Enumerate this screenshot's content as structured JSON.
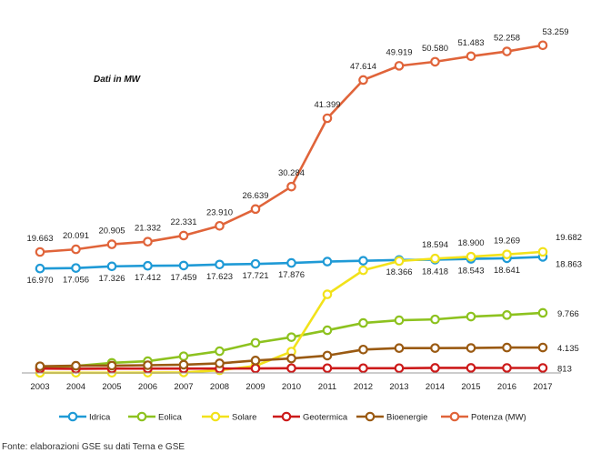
{
  "note": "Dati in MW",
  "source": "Fonte: elaborazioni GSE su dati Terna e GSE",
  "chart_data": {
    "type": "line",
    "x": [
      "2003",
      "2004",
      "2005",
      "2006",
      "2007",
      "2008",
      "2009",
      "2010",
      "2011",
      "2012",
      "2013",
      "2014",
      "2015",
      "2016",
      "2017"
    ],
    "ylim": [
      0,
      55000
    ],
    "grid": false,
    "legend_position": "bottom",
    "series": [
      {
        "name": "Idrica",
        "color": "#1f9ad6",
        "values": [
          16970,
          17056,
          17326,
          17412,
          17459,
          17623,
          17721,
          17876,
          18100,
          18232,
          18366,
          18418,
          18543,
          18641,
          18863
        ],
        "labels": [
          "16.970",
          "17.056",
          "17.326",
          "17.412",
          "17.459",
          "17.623",
          "17.721",
          "17.876",
          "",
          "",
          "18.366",
          "18.418",
          "18.543",
          "18.641",
          "18.863"
        ]
      },
      {
        "name": "Eolica",
        "color": "#8dc21f",
        "values": [
          874,
          1131,
          1639,
          1908,
          2714,
          3538,
          4898,
          5814,
          6936,
          8119,
          8561,
          8703,
          9162,
          9410,
          9766
        ],
        "labels": [
          "",
          "",
          "",
          "",
          "",
          "",
          "",
          "",
          "",
          "",
          "",
          "",
          "",
          "",
          "9.766"
        ]
      },
      {
        "name": "Solare",
        "color": "#f2e21a",
        "values": [
          26,
          31,
          34,
          50,
          87,
          432,
          1144,
          3470,
          12773,
          16690,
          18185,
          18594,
          18900,
          19269,
          19682
        ],
        "labels": [
          "",
          "",
          "",
          "",
          "",
          "",
          "",
          "",
          "",
          "",
          "",
          "18.594",
          "18.900",
          "19.269",
          "19.682"
        ]
      },
      {
        "name": "Geotermica",
        "color": "#cc1a1a",
        "values": [
          707,
          681,
          711,
          711,
          711,
          711,
          737,
          772,
          772,
          772,
          773,
          821,
          821,
          815,
          813
        ],
        "labels": [
          "",
          "",
          "",
          "",
          "",
          "",
          "",
          "",
          "",
          "",
          "",
          "",
          "",
          "",
          "813"
        ]
      },
      {
        "name": "Bioenergie",
        "color": "#9a5a12",
        "values": [
          1086,
          1173,
          1193,
          1256,
          1336,
          1555,
          2019,
          2352,
          2825,
          3802,
          4033,
          4044,
          4057,
          4124,
          4135
        ],
        "labels": [
          "",
          "",
          "",
          "",
          "",
          "",
          "",
          "",
          "",
          "",
          "",
          "",
          "",
          "",
          "4.135"
        ]
      },
      {
        "name": "Potenza (MW)",
        "color": "#e0643a",
        "values": [
          19663,
          20091,
          20905,
          21332,
          22331,
          23910,
          26639,
          30284,
          41399,
          47614,
          49919,
          50580,
          51483,
          52258,
          53259
        ],
        "labels": [
          "19.663",
          "20.091",
          "20.905",
          "21.332",
          "22.331",
          "23.910",
          "26.639",
          "30.284",
          "41.399",
          "47.614",
          "49.919",
          "50.580",
          "51.483",
          "52.258",
          "53.259"
        ]
      }
    ]
  }
}
